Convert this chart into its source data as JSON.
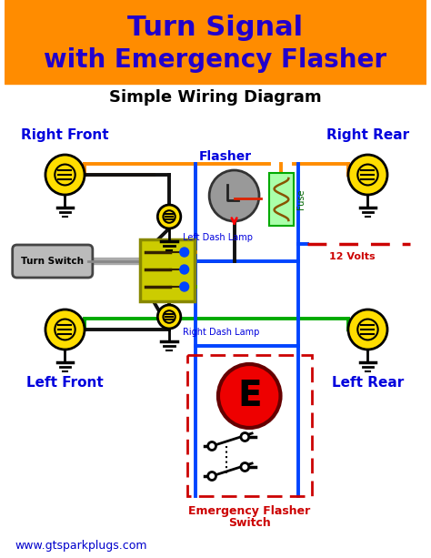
{
  "title_line1": "Turn Signal",
  "title_line2": "with Emergency Flasher",
  "subtitle": "Simple Wiring Diagram",
  "title_bg_color": "#FF8C00",
  "title_text_color": "#2200CC",
  "subtitle_text_color": "#000000",
  "bg_color": "#FFFFFF",
  "label_color_blue": "#0000DD",
  "label_color_red": "#CC0000",
  "wire_orange": "#FF8C00",
  "wire_blue": "#0044FF",
  "wire_green": "#00AA00",
  "wire_black": "#111111",
  "lamp_yellow": "#FFDD00",
  "lamp_outline": "#000000",
  "switch_yellow": "#CCCC00",
  "flasher_gray": "#999999",
  "fuse_green": "#AAFFAA",
  "emergency_red": "#EE0000",
  "emergency_border": "#CC0000",
  "dashed_red": "#CC0000",
  "website": "www.gtsparkplugs.com",
  "website_color": "#0000CC",
  "rf_label": "Right Front",
  "rr_label": "Right Rear",
  "lf_label": "Left Front",
  "lr_label": "Left Rear",
  "flasher_label": "Flasher",
  "fuse_label": "Fuse",
  "v12_label": "12 Volts",
  "turn_switch_label": "Turn Switch",
  "left_dash_label": "Left Dash Lamp",
  "right_dash_label": "Right Dash Lamp",
  "emg_label1": "Emergency Flasher",
  "emg_label2": "Switch"
}
